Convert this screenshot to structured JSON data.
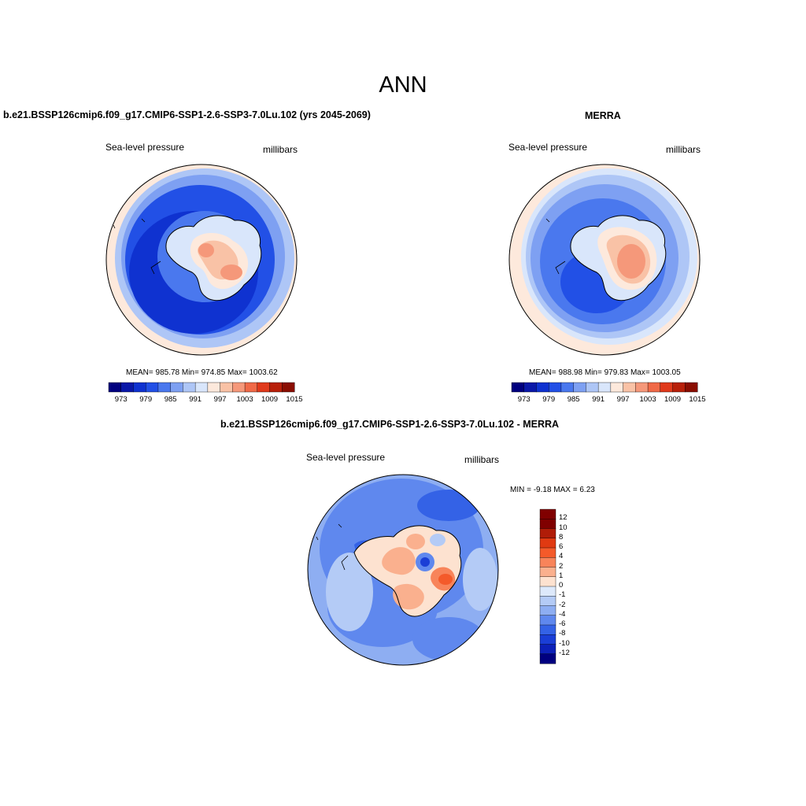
{
  "page": {
    "title": "ANN"
  },
  "panels": [
    {
      "title": "b.e21.BSSP126cmip6.f09_g17.CMIP6-SSP1-2.6-SSP3-7.0Lu.102 (yrs 2045-2069)",
      "variable": "Sea-level pressure",
      "units": "millibars",
      "stats": "MEAN= 985.78  Min= 974.85  Max= 1003.62",
      "colorbar_labels": [
        "973",
        "979",
        "985",
        "991",
        "997",
        "1003",
        "1009",
        "1015"
      ]
    },
    {
      "title": "MERRA",
      "variable": "Sea-level pressure",
      "units": "millibars",
      "stats": "MEAN= 988.98  Min= 979.83  Max= 1003.05",
      "colorbar_labels": [
        "973",
        "979",
        "985",
        "991",
        "997",
        "1003",
        "1009",
        "1015"
      ]
    },
    {
      "title": "b.e21.BSSP126cmip6.f09_g17.CMIP6-SSP1-2.6-SSP3-7.0Lu.102 - MERRA",
      "variable": "Sea-level pressure",
      "units": "millibars",
      "stats": "MIN =  -9.18 MAX =   6.23",
      "colorbar_labels": [
        "12",
        "10",
        "8",
        "6",
        "4",
        "2",
        "1",
        "0",
        "-1",
        "-2",
        "-4",
        "-6",
        "-8",
        "-10",
        "-12"
      ]
    }
  ],
  "colors": {
    "abs_scale": [
      "#00007f",
      "#0a18a8",
      "#0f32d0",
      "#2250e6",
      "#4a78ee",
      "#7ea0f2",
      "#aec6f6",
      "#d9e6fb",
      "#fde9dc",
      "#f9c2a6",
      "#f5987a",
      "#f06a48",
      "#e03a1c",
      "#b8200a",
      "#8a0e02"
    ],
    "diff_scale": [
      "#800000",
      "#b01c08",
      "#e03a12",
      "#f45a2a",
      "#f8845a",
      "#fab08e",
      "#fde2d0",
      "#dde9fb",
      "#b4cbf6",
      "#8eaef2",
      "#5f88ee",
      "#3462e6",
      "#1a3ed6",
      "#0c20b8",
      "#00007f"
    ],
    "ocean_low": "#1e46d8",
    "ice_high": "#f4997a"
  }
}
